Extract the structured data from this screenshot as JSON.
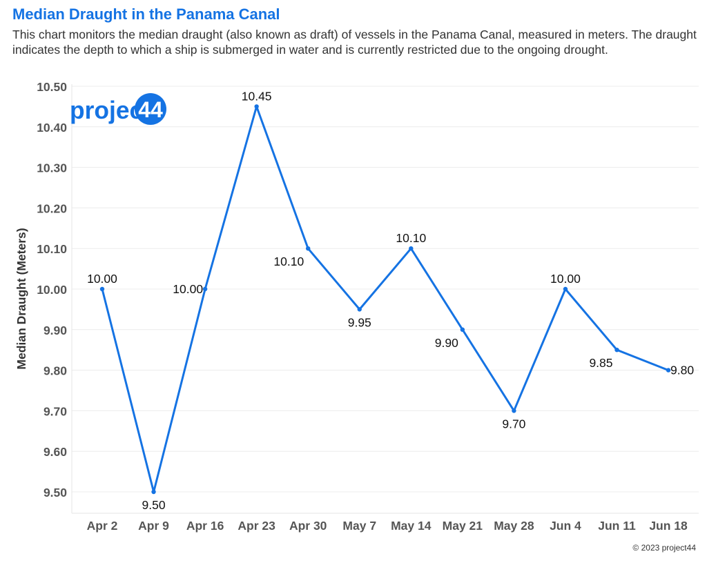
{
  "title": "Median Draught in the Panama Canal",
  "subtitle": "This chart monitors the median draught (also known as draft) of vessels in the Panama Canal, measured in meters. The draught indicates the depth to which a ship is submerged in water and is currently restricted due to the ongoing drought.",
  "logo": {
    "text_main": "project",
    "text_badge": "44",
    "color": "#1573e3"
  },
  "copyright": "© 2023 project44",
  "colors": {
    "accent": "#1573e3",
    "axis_text": "#555555",
    "gridline": "#ececec"
  },
  "chart_data": {
    "type": "line",
    "title": "Median Draught in the Panama Canal",
    "xlabel": "",
    "ylabel": "Median Draught (Meters)",
    "categories": [
      "Apr 2",
      "Apr 9",
      "Apr 16",
      "Apr 23",
      "Apr 30",
      "May 7",
      "May 14",
      "May 21",
      "May 28",
      "Jun 4",
      "Jun 11",
      "Jun 18"
    ],
    "values": [
      10.0,
      9.5,
      10.0,
      10.45,
      10.1,
      9.95,
      10.1,
      9.9,
      9.7,
      10.0,
      9.85,
      9.8
    ],
    "data_labels": [
      "10.00",
      "9.50",
      "10.00",
      "10.45",
      "10.10",
      "9.95",
      "10.10",
      "9.90",
      "9.70",
      "10.00",
      "9.85",
      "9.80"
    ],
    "yticks": [
      9.5,
      9.6,
      9.7,
      9.8,
      9.9,
      10.0,
      10.1,
      10.2,
      10.3,
      10.4,
      10.5
    ],
    "ytick_labels": [
      "9.50",
      "9.60",
      "9.70",
      "9.80",
      "9.90",
      "10.00",
      "10.10",
      "10.20",
      "10.30",
      "10.40",
      "10.50"
    ],
    "ylim": [
      9.5,
      10.5
    ],
    "grid": true,
    "legend": "none"
  }
}
